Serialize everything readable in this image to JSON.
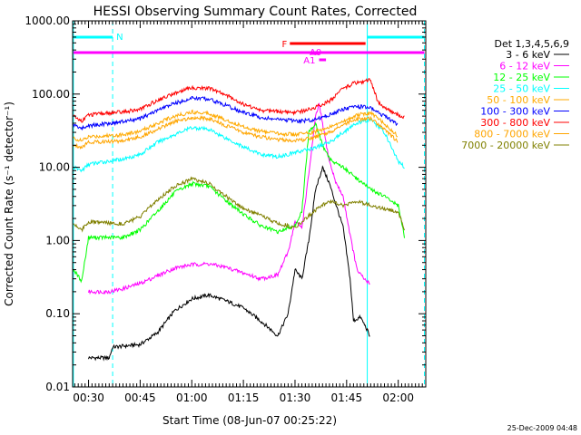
{
  "chart_data": {
    "type": "line",
    "title": "HESSI Observing Summary Count Rates, Corrected",
    "xlabel": "Start Time (08-Jun-07 00:25:22)",
    "ylabel": "Corrected Count Rate (s⁻¹ detector⁻¹)",
    "yscale": "log",
    "ylim": [
      0.01,
      1000
    ],
    "xlim_min": [
      25.37,
      128.0
    ],
    "x_unit": "minutes after 00:00 UT on 08-Jun-07",
    "y_ticks": [
      "0.01",
      "0.10",
      "1.00",
      "10.00",
      "100.00",
      "1000.00"
    ],
    "x_ticks": [
      {
        "label": "00:30",
        "min": 30
      },
      {
        "label": "00:45",
        "min": 45
      },
      {
        "label": "01:00",
        "min": 60
      },
      {
        "label": "01:15",
        "min": 75
      },
      {
        "label": "01:30",
        "min": 90
      },
      {
        "label": "01:45",
        "min": 105
      },
      {
        "label": "02:00",
        "min": 120
      }
    ],
    "legend_title": "Det 1,3,4,5,6,9",
    "legend_placement": "right",
    "timestamp": "25-Dec-2009 04:48",
    "series": [
      {
        "name": "3 - 6 keV",
        "color": "#000000",
        "points": [
          [
            30,
            0.025
          ],
          [
            36,
            0.025
          ],
          [
            37,
            0.035
          ],
          [
            45,
            0.038
          ],
          [
            50,
            0.055
          ],
          [
            55,
            0.11
          ],
          [
            60,
            0.16
          ],
          [
            65,
            0.18
          ],
          [
            70,
            0.15
          ],
          [
            75,
            0.12
          ],
          [
            80,
            0.08
          ],
          [
            85,
            0.05
          ],
          [
            88,
            0.1
          ],
          [
            90,
            0.4
          ],
          [
            92,
            0.3
          ],
          [
            94,
            1.0
          ],
          [
            96,
            5.0
          ],
          [
            98,
            10
          ],
          [
            100,
            6
          ],
          [
            102,
            3
          ],
          [
            104,
            1.5
          ],
          [
            106,
            0.3
          ],
          [
            107,
            0.08
          ],
          [
            109,
            0.09
          ],
          [
            111,
            0.06
          ],
          [
            112,
            0.045
          ]
        ]
      },
      {
        "name": "6 - 12 keV",
        "color": "#ff00ff",
        "points": [
          [
            30,
            0.2
          ],
          [
            36,
            0.2
          ],
          [
            40,
            0.22
          ],
          [
            45,
            0.26
          ],
          [
            50,
            0.33
          ],
          [
            55,
            0.42
          ],
          [
            60,
            0.47
          ],
          [
            65,
            0.48
          ],
          [
            70,
            0.43
          ],
          [
            75,
            0.36
          ],
          [
            80,
            0.3
          ],
          [
            85,
            0.34
          ],
          [
            88,
            0.7
          ],
          [
            90,
            1.8
          ],
          [
            92,
            1.5
          ],
          [
            94,
            8
          ],
          [
            96,
            50
          ],
          [
            97,
            72
          ],
          [
            98,
            40
          ],
          [
            100,
            12
          ],
          [
            102,
            6
          ],
          [
            104,
            4
          ],
          [
            106,
            1.2
          ],
          [
            108,
            0.4
          ],
          [
            110,
            0.3
          ],
          [
            112,
            0.25
          ]
        ]
      },
      {
        "name": "12 - 25 keV",
        "color": "#00ff00",
        "points": [
          [
            25.6,
            0.4
          ],
          [
            28,
            0.28
          ],
          [
            30,
            1.1
          ],
          [
            40,
            1.1
          ],
          [
            45,
            1.4
          ],
          [
            50,
            2.5
          ],
          [
            55,
            4.5
          ],
          [
            60,
            6
          ],
          [
            65,
            5.5
          ],
          [
            70,
            3.5
          ],
          [
            75,
            2.3
          ],
          [
            80,
            1.6
          ],
          [
            85,
            1.3
          ],
          [
            88,
            1.5
          ],
          [
            90,
            1.6
          ],
          [
            92,
            2.5
          ],
          [
            94,
            30
          ],
          [
            96,
            40
          ],
          [
            98,
            20
          ],
          [
            100,
            13
          ],
          [
            104,
            10
          ],
          [
            108,
            7
          ],
          [
            112,
            5
          ],
          [
            116,
            4
          ],
          [
            120,
            3
          ],
          [
            122,
            1
          ]
        ]
      },
      {
        "name": "25 - 50 keV",
        "color": "#00ffff",
        "points": [
          [
            25.6,
            10
          ],
          [
            28,
            9
          ],
          [
            30,
            11
          ],
          [
            40,
            13
          ],
          [
            45,
            15
          ],
          [
            50,
            22
          ],
          [
            55,
            28
          ],
          [
            60,
            35
          ],
          [
            65,
            33
          ],
          [
            70,
            25
          ],
          [
            75,
            19
          ],
          [
            80,
            15
          ],
          [
            85,
            14
          ],
          [
            88,
            15
          ],
          [
            90,
            16
          ],
          [
            95,
            18
          ],
          [
            100,
            22
          ],
          [
            104,
            30
          ],
          [
            108,
            40
          ],
          [
            112,
            45
          ],
          [
            116,
            30
          ],
          [
            120,
            12
          ],
          [
            122,
            10
          ]
        ]
      },
      {
        "name": "50 - 100 keV",
        "color": "#ffaa00",
        "points": [
          [
            25.6,
            25
          ],
          [
            28,
            23
          ],
          [
            30,
            26
          ],
          [
            40,
            28
          ],
          [
            45,
            31
          ],
          [
            50,
            40
          ],
          [
            55,
            50
          ],
          [
            60,
            57
          ],
          [
            65,
            55
          ],
          [
            70,
            44
          ],
          [
            75,
            36
          ],
          [
            80,
            31
          ],
          [
            85,
            29
          ],
          [
            90,
            28
          ],
          [
            95,
            30
          ],
          [
            100,
            35
          ],
          [
            104,
            42
          ],
          [
            108,
            52
          ],
          [
            112,
            55
          ],
          [
            116,
            40
          ],
          [
            120,
            26
          ]
        ]
      },
      {
        "name": "100 - 300 keV",
        "color": "#0000ff",
        "points": [
          [
            25.6,
            38
          ],
          [
            28,
            34
          ],
          [
            30,
            37
          ],
          [
            40,
            42
          ],
          [
            45,
            46
          ],
          [
            50,
            60
          ],
          [
            55,
            75
          ],
          [
            60,
            88
          ],
          [
            65,
            86
          ],
          [
            70,
            70
          ],
          [
            75,
            56
          ],
          [
            80,
            48
          ],
          [
            85,
            45
          ],
          [
            90,
            43
          ],
          [
            95,
            44
          ],
          [
            100,
            52
          ],
          [
            104,
            62
          ],
          [
            108,
            68
          ],
          [
            112,
            65
          ],
          [
            116,
            50
          ],
          [
            120,
            38
          ]
        ]
      },
      {
        "name": "300 - 800 keV",
        "color": "#ff0000",
        "points": [
          [
            25.6,
            50
          ],
          [
            28,
            43
          ],
          [
            30,
            52
          ],
          [
            40,
            57
          ],
          [
            45,
            62
          ],
          [
            50,
            82
          ],
          [
            55,
            103
          ],
          [
            60,
            122
          ],
          [
            65,
            120
          ],
          [
            70,
            97
          ],
          [
            75,
            73
          ],
          [
            80,
            60
          ],
          [
            85,
            58
          ],
          [
            90,
            56
          ],
          [
            95,
            63
          ],
          [
            100,
            80
          ],
          [
            104,
            118
          ],
          [
            107,
            140
          ],
          [
            110,
            150
          ],
          [
            112,
            155
          ],
          [
            114,
            80
          ],
          [
            116,
            65
          ],
          [
            120,
            52
          ],
          [
            122,
            48
          ]
        ]
      },
      {
        "name": "800 - 7000 keV",
        "color": "#ffa500",
        "points": [
          [
            25.6,
            20
          ],
          [
            28,
            19
          ],
          [
            30,
            22
          ],
          [
            40,
            23
          ],
          [
            45,
            26
          ],
          [
            50,
            33
          ],
          [
            55,
            42
          ],
          [
            60,
            48
          ],
          [
            65,
            46
          ],
          [
            70,
            37
          ],
          [
            75,
            30
          ],
          [
            80,
            26
          ],
          [
            85,
            24
          ],
          [
            90,
            23
          ],
          [
            95,
            25
          ],
          [
            100,
            30
          ],
          [
            104,
            38
          ],
          [
            108,
            45
          ],
          [
            112,
            46
          ],
          [
            116,
            33
          ],
          [
            120,
            22
          ]
        ]
      },
      {
        "name": "7000 - 20000 keV",
        "color": "#808000",
        "points": [
          [
            25.6,
            1.7
          ],
          [
            28,
            1.4
          ],
          [
            30,
            1.8
          ],
          [
            40,
            1.7
          ],
          [
            45,
            2.1
          ],
          [
            50,
            3.6
          ],
          [
            55,
            5.5
          ],
          [
            60,
            7
          ],
          [
            65,
            6
          ],
          [
            70,
            4
          ],
          [
            75,
            2.7
          ],
          [
            80,
            2.2
          ],
          [
            85,
            1.7
          ],
          [
            88,
            1.6
          ],
          [
            90,
            1.5
          ],
          [
            95,
            2.4
          ],
          [
            100,
            3.5
          ],
          [
            104,
            3.0
          ],
          [
            108,
            3.5
          ],
          [
            112,
            3.0
          ],
          [
            116,
            2.7
          ],
          [
            120,
            2.5
          ],
          [
            122,
            1.3
          ]
        ]
      }
    ],
    "flags": [
      {
        "label": "N",
        "color": "#00ffff",
        "segments": [
          [
            25.6,
            37.0
          ],
          [
            111.0,
            127.6
          ]
        ],
        "level": "top"
      },
      {
        "label": "",
        "color": "#ff00ff",
        "segments": [
          [
            25.6,
            127.6
          ]
        ],
        "level": "second"
      },
      {
        "label": "F",
        "color": "#ff0000",
        "segments": [
          [
            88.5,
            110.5
          ]
        ],
        "level": "flare"
      },
      {
        "label": "A0",
        "color": "#ff00ff",
        "segments": [
          [
            94.5,
            97.0
          ]
        ],
        "level": "a0"
      },
      {
        "label": "A1",
        "color": "#ff00ff",
        "segments": [
          [
            97.0,
            99.0
          ]
        ],
        "level": "a1"
      }
    ],
    "vlines": [
      {
        "min": 25.6,
        "color": "#00ffff",
        "style": "solid"
      },
      {
        "min": 37.0,
        "color": "#00ffff",
        "style": "dashed"
      },
      {
        "min": 111.0,
        "color": "#00ffff",
        "style": "solid"
      },
      {
        "min": 127.6,
        "color": "#00ffff",
        "style": "dashed"
      }
    ]
  }
}
